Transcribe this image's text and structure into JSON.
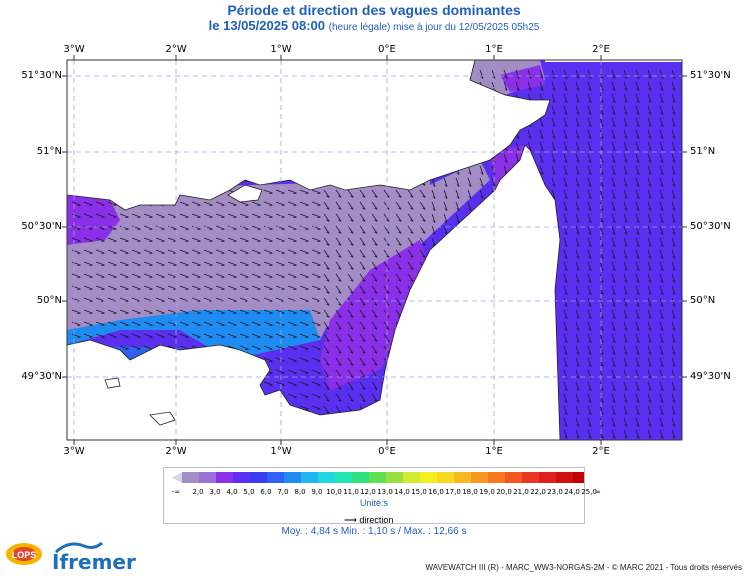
{
  "title": "Période et direction des vagues dominantes",
  "subtitle_main": "le 13/05/2025 08:00",
  "subtitle_note": "(heure légale) mise à jour du 12/05/2025 05h25",
  "lon_labels": [
    "3°W",
    "2°W",
    "1°W",
    "0°E",
    "1°E",
    "2°E"
  ],
  "lat_labels": [
    "51°30'N",
    "51°N",
    "50°30'N",
    "50°N",
    "49°30'N"
  ],
  "legend": {
    "scale_labels": [
      "2,0",
      "3,0",
      "4,0",
      "5,0",
      "6,0",
      "7,0",
      "8,0",
      "9,0",
      "10,0",
      "11,0",
      "12,0",
      "13,0",
      "14,0",
      "15,0",
      "16,0",
      "17,0",
      "18,0",
      "19,0",
      "20,0",
      "21,0",
      "22,0",
      "23,0",
      "24,0",
      "25,0"
    ],
    "end_low": "-∞",
    "end_high": "∞",
    "colors": [
      "#a48cc4",
      "#9a6fd6",
      "#8b2fe8",
      "#5a2ff0",
      "#3b3cf0",
      "#2f62f0",
      "#1f8cf2",
      "#1fb6f0",
      "#20d6e0",
      "#22e6b0",
      "#30e080",
      "#60e050",
      "#9ae040",
      "#d0ec30",
      "#f4f020",
      "#f8d820",
      "#f8b820",
      "#f89820",
      "#f87820",
      "#f05820",
      "#e83820",
      "#e02020",
      "#d01010",
      "#c00000"
    ],
    "unit_label": "Unité:s",
    "direction_label": "direction"
  },
  "stats": "Moy. : 4,84 s    Min. : 1,10 s / Max. : 12,66 s",
  "footer": "WAVEWATCH III (R) - MARC_WW3-NORGAS-2M - © MARC 2021 - Tous droits réservés",
  "logo_left": "LOPS",
  "logo_right": "Ifremer",
  "colors": {
    "land": "#ffffff",
    "grid": "#9aa4e8",
    "title": "#1f5fbf"
  }
}
